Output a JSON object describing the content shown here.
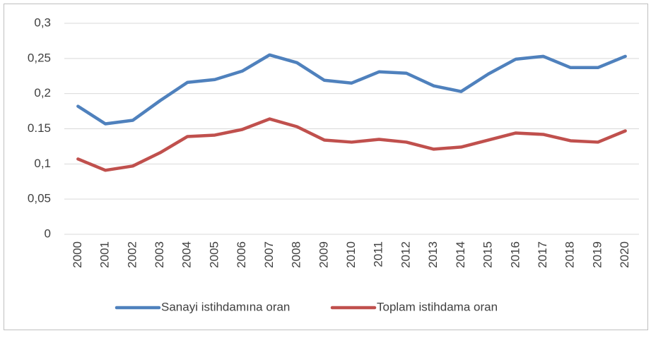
{
  "chart_data": {
    "type": "line",
    "categories": [
      "2000",
      "2001",
      "2002",
      "2003",
      "2004",
      "2005",
      "2006",
      "2007",
      "2008",
      "2009",
      "2010",
      "2011",
      "2012",
      "2013",
      "2014",
      "2015",
      "2016",
      "2017",
      "2018",
      "2019",
      "2020"
    ],
    "series": [
      {
        "name": "Sanayi istihdamına oran",
        "color": "#4f81bd",
        "values": [
          0.182,
          0.157,
          0.162,
          0.19,
          0.216,
          0.22,
          0.232,
          0.255,
          0.244,
          0.219,
          0.215,
          0.231,
          0.229,
          0.211,
          0.203,
          0.228,
          0.249,
          0.253,
          0.237,
          0.237,
          0.253
        ]
      },
      {
        "name": "Toplam istihdama oran",
        "color": "#c0504d",
        "values": [
          0.107,
          0.091,
          0.097,
          0.116,
          0.139,
          0.141,
          0.149,
          0.164,
          0.153,
          0.134,
          0.131,
          0.135,
          0.131,
          0.121,
          0.124,
          0.134,
          0.144,
          0.142,
          0.133,
          0.131,
          0.147
        ]
      }
    ],
    "ylim": [
      0,
      0.3
    ],
    "yticks": [
      0,
      {
        "value": 0.05,
        "label": "0,05"
      },
      {
        "value": 0.1,
        "label": "0,1"
      },
      {
        "value": 0.15,
        "label": "0.15"
      },
      {
        "value": 0.2,
        "label": "0,2"
      },
      {
        "value": 0.25,
        "label": "0,25"
      },
      {
        "value": 0.3,
        "label": "0,3"
      }
    ],
    "grid": true,
    "legend": "bottom"
  }
}
